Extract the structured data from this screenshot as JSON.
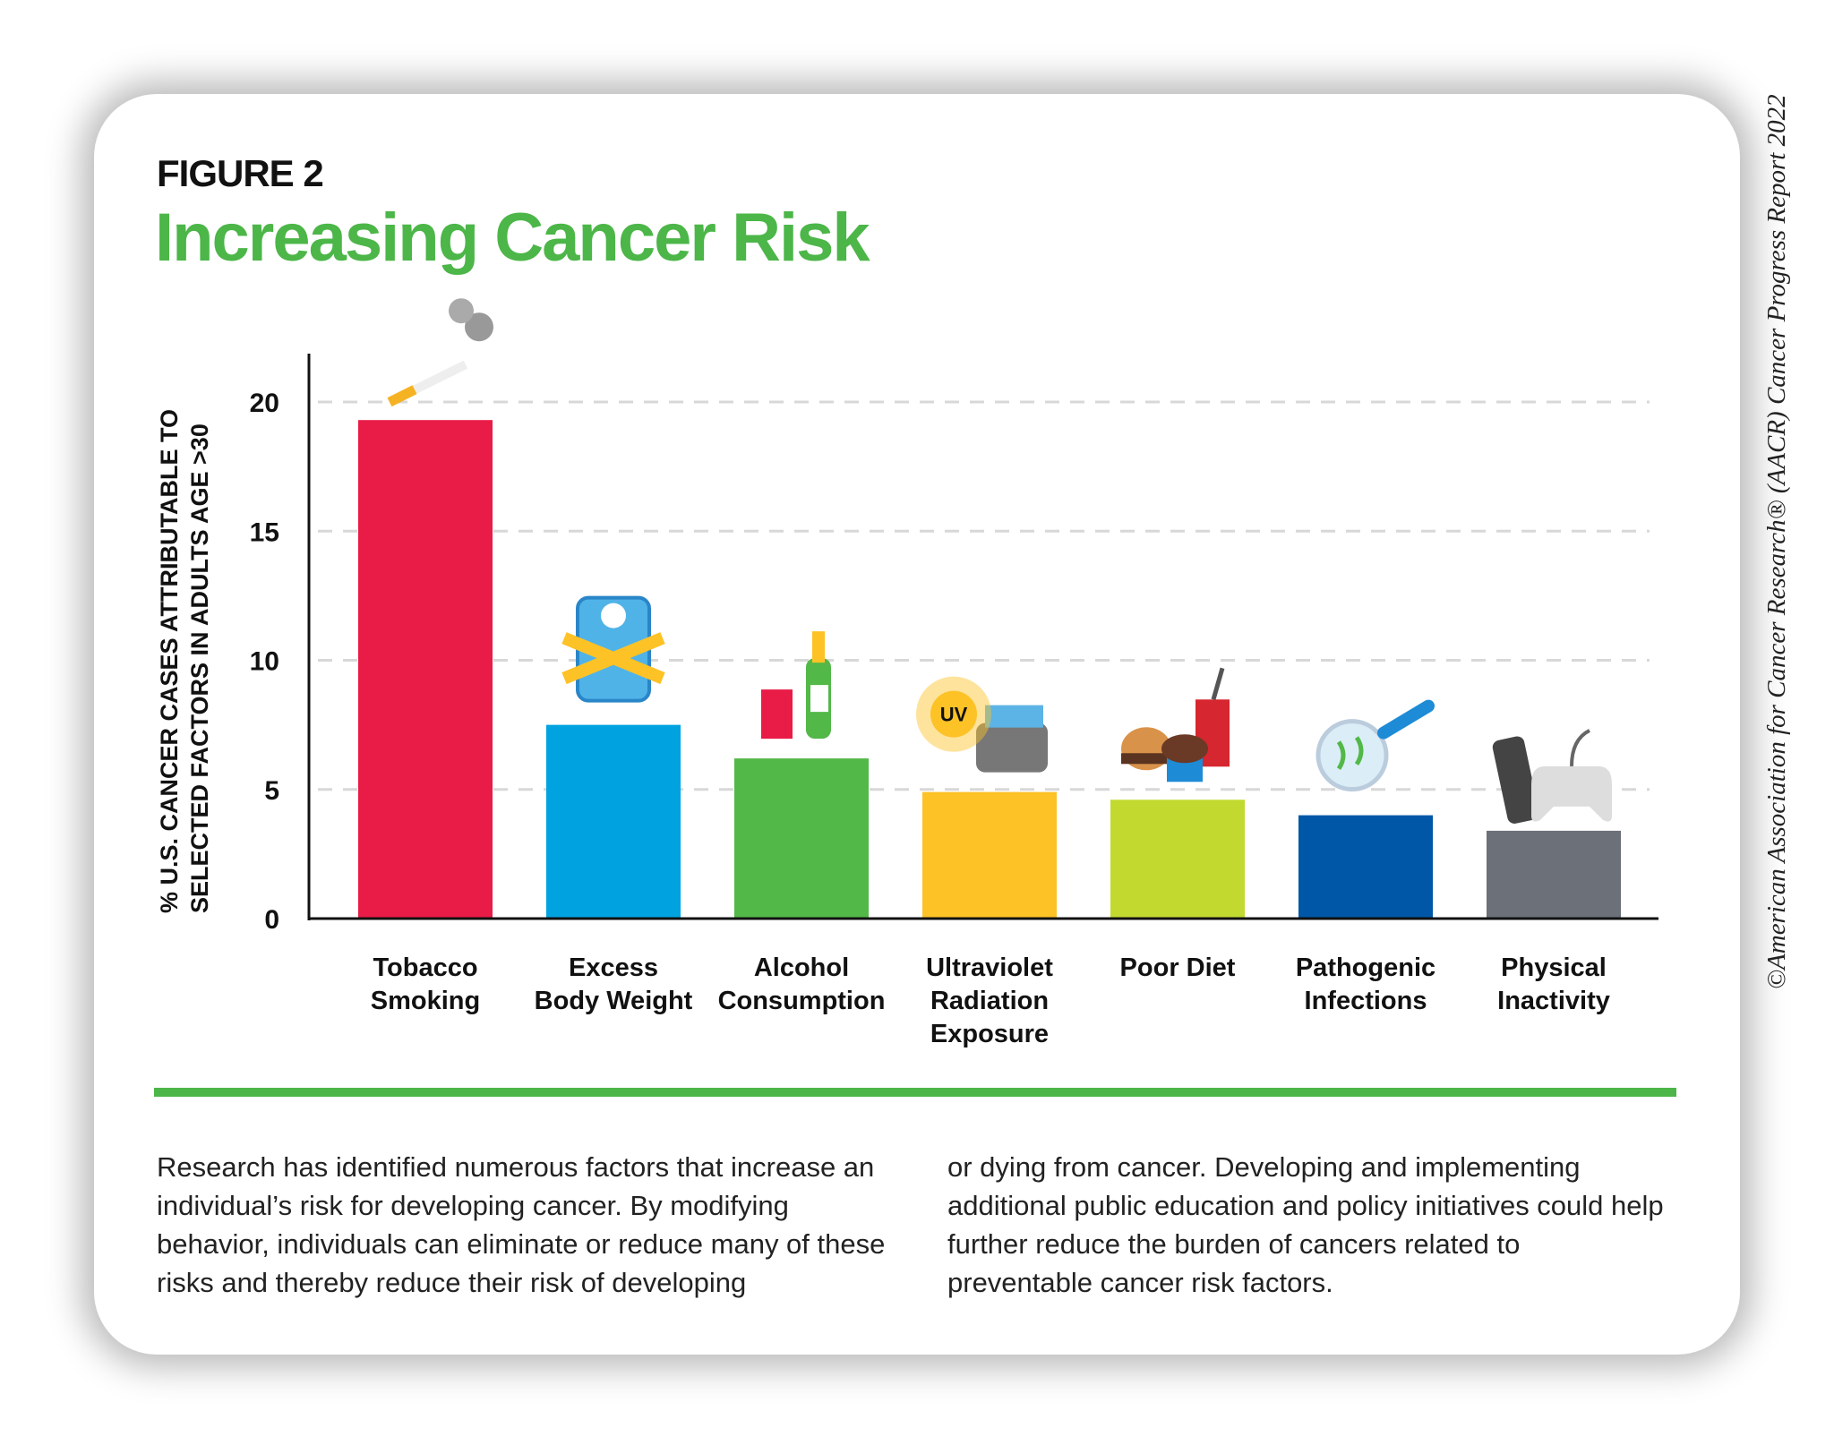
{
  "figure_label": "FIGURE 2",
  "title": "Increasing Cancer Risk",
  "copyright": "©American Association for Cancer Research® (AACR) Cancer Progress Report 2022",
  "chart_data": {
    "type": "bar",
    "title": "Increasing Cancer Risk",
    "ylabel_lines": [
      "% U.S. CANCER CASES ATTRIBUTABLE TO",
      "SELECTED FACTORS IN ADULTS AGE >30"
    ],
    "xlabel": "",
    "ylim": [
      0,
      20
    ],
    "yticks": [
      0,
      5,
      10,
      15,
      20
    ],
    "grid": "horizontal dashed",
    "categories": [
      [
        "Tobacco",
        "Smoking"
      ],
      [
        "Excess",
        "Body Weight"
      ],
      [
        "Alcohol",
        "Consumption"
      ],
      [
        "Ultraviolet",
        "Radiation",
        "Exposure"
      ],
      [
        "Poor Diet"
      ],
      [
        "Pathogenic",
        "Infections"
      ],
      [
        "Physical",
        "Inactivity"
      ]
    ],
    "values": [
      19.3,
      7.5,
      6.2,
      4.9,
      4.6,
      4.0,
      3.4
    ],
    "colors": [
      "#e91b47",
      "#00a3e0",
      "#52b848",
      "#fdc226",
      "#c2d92f",
      "#0057a8",
      "#6b7079"
    ],
    "icons": [
      "cigarette-icon",
      "scale-tape-icon",
      "beer-champagne-icon",
      "uv-tanning-bed-icon",
      "fast-food-icon",
      "petri-dish-icon",
      "remote-gamepad-icon"
    ],
    "icon_text": {
      "uv": "UV"
    }
  },
  "body": {
    "col1": "Research has identified numerous factors that increase an individual’s risk for developing cancer. By modifying behavior, individuals can eliminate or reduce many of these risks and thereby reduce their risk of developing",
    "col2": "or dying from cancer. Developing and implementing additional public education and policy initiatives could help further reduce the burden of cancers related to preventable cancer risk factors."
  }
}
